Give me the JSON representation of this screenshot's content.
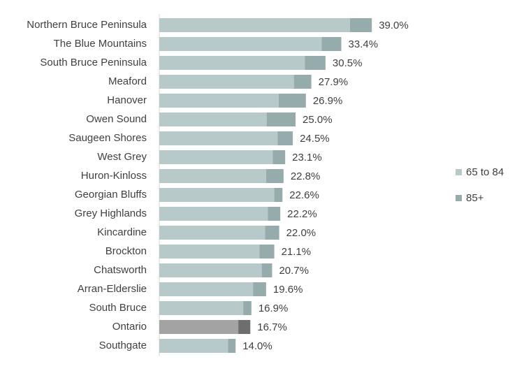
{
  "chart_data": {
    "type": "stacked-barh",
    "categories": [
      "Northern Bruce Peninsula",
      "The Blue Mountains",
      "South Bruce Peninsula",
      "Meaford",
      "Hanover",
      "Owen Sound",
      "Saugeen Shores",
      "West Grey",
      "Huron-Kinloss",
      "Georgian Bluffs",
      "Grey Highlands",
      "Kincardine",
      "Brockton",
      "Chatsworth",
      "Arran-Elderslie",
      "South Bruce",
      "Ontario",
      "Southgate"
    ],
    "series": [
      {
        "name": "65 to 84",
        "color": "#b8c9c9",
        "highlight_color": "#a3a3a3",
        "values": [
          35.0,
          29.8,
          26.7,
          24.7,
          21.9,
          19.7,
          21.7,
          20.8,
          19.6,
          21.1,
          19.9,
          19.4,
          18.4,
          18.8,
          17.2,
          15.4,
          14.5,
          12.6
        ]
      },
      {
        "name": "85+",
        "color": "#96abab",
        "highlight_color": "#6e6e6e",
        "values": [
          4.0,
          3.6,
          3.8,
          3.2,
          5.0,
          5.3,
          2.8,
          2.3,
          3.2,
          1.5,
          2.3,
          2.6,
          2.7,
          1.9,
          2.4,
          1.5,
          2.2,
          1.4
        ]
      }
    ],
    "totals": [
      39.0,
      33.4,
      30.5,
      27.9,
      26.9,
      25.0,
      24.5,
      23.1,
      22.8,
      22.6,
      22.2,
      22.0,
      21.1,
      20.7,
      19.6,
      16.9,
      16.7,
      14.0
    ],
    "total_labels": [
      "39.0%",
      "33.4%",
      "30.5%",
      "27.9%",
      "26.9%",
      "25.0%",
      "24.5%",
      "23.1%",
      "22.8%",
      "22.6%",
      "22.2%",
      "22.0%",
      "21.1%",
      "20.7%",
      "19.6%",
      "16.9%",
      "16.7%",
      "14.0%"
    ],
    "highlight_categories": [
      "Ontario"
    ],
    "xlim": [
      0,
      40
    ],
    "legend": "right"
  }
}
